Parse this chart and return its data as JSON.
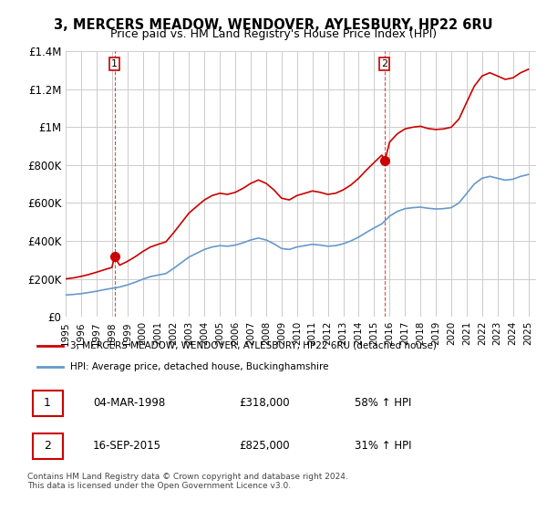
{
  "title": "3, MERCERS MEADOW, WENDOVER, AYLESBURY, HP22 6RU",
  "subtitle": "Price paid vs. HM Land Registry's House Price Index (HPI)",
  "sale1_date": "04-MAR-1998",
  "sale1_price": 318000,
  "sale1_label": "58% ↑ HPI",
  "sale2_date": "16-SEP-2015",
  "sale2_price": 825000,
  "sale2_label": "31% ↑ HPI",
  "legend_line1": "3, MERCERS MEADOW, WENDOVER, AYLESBURY, HP22 6RU (detached house)",
  "legend_line2": "HPI: Average price, detached house, Buckinghamshire",
  "footer": "Contains HM Land Registry data © Crown copyright and database right 2024.\nThis data is licensed under the Open Government Licence v3.0.",
  "red_color": "#cc0000",
  "blue_color": "#6699cc",
  "marker_color_1": "#cc0000",
  "marker_color_2": "#cc0000",
  "ylim": [
    0,
    1400000
  ],
  "yticks": [
    0,
    200000,
    400000,
    600000,
    800000,
    1000000,
    1200000,
    1400000
  ],
  "ytick_labels": [
    "£0",
    "£200K",
    "£400K",
    "£600K",
    "£800K",
    "£1M",
    "£1.2M",
    "£1.4M"
  ],
  "background_color": "#ffffff",
  "grid_color": "#cccccc"
}
